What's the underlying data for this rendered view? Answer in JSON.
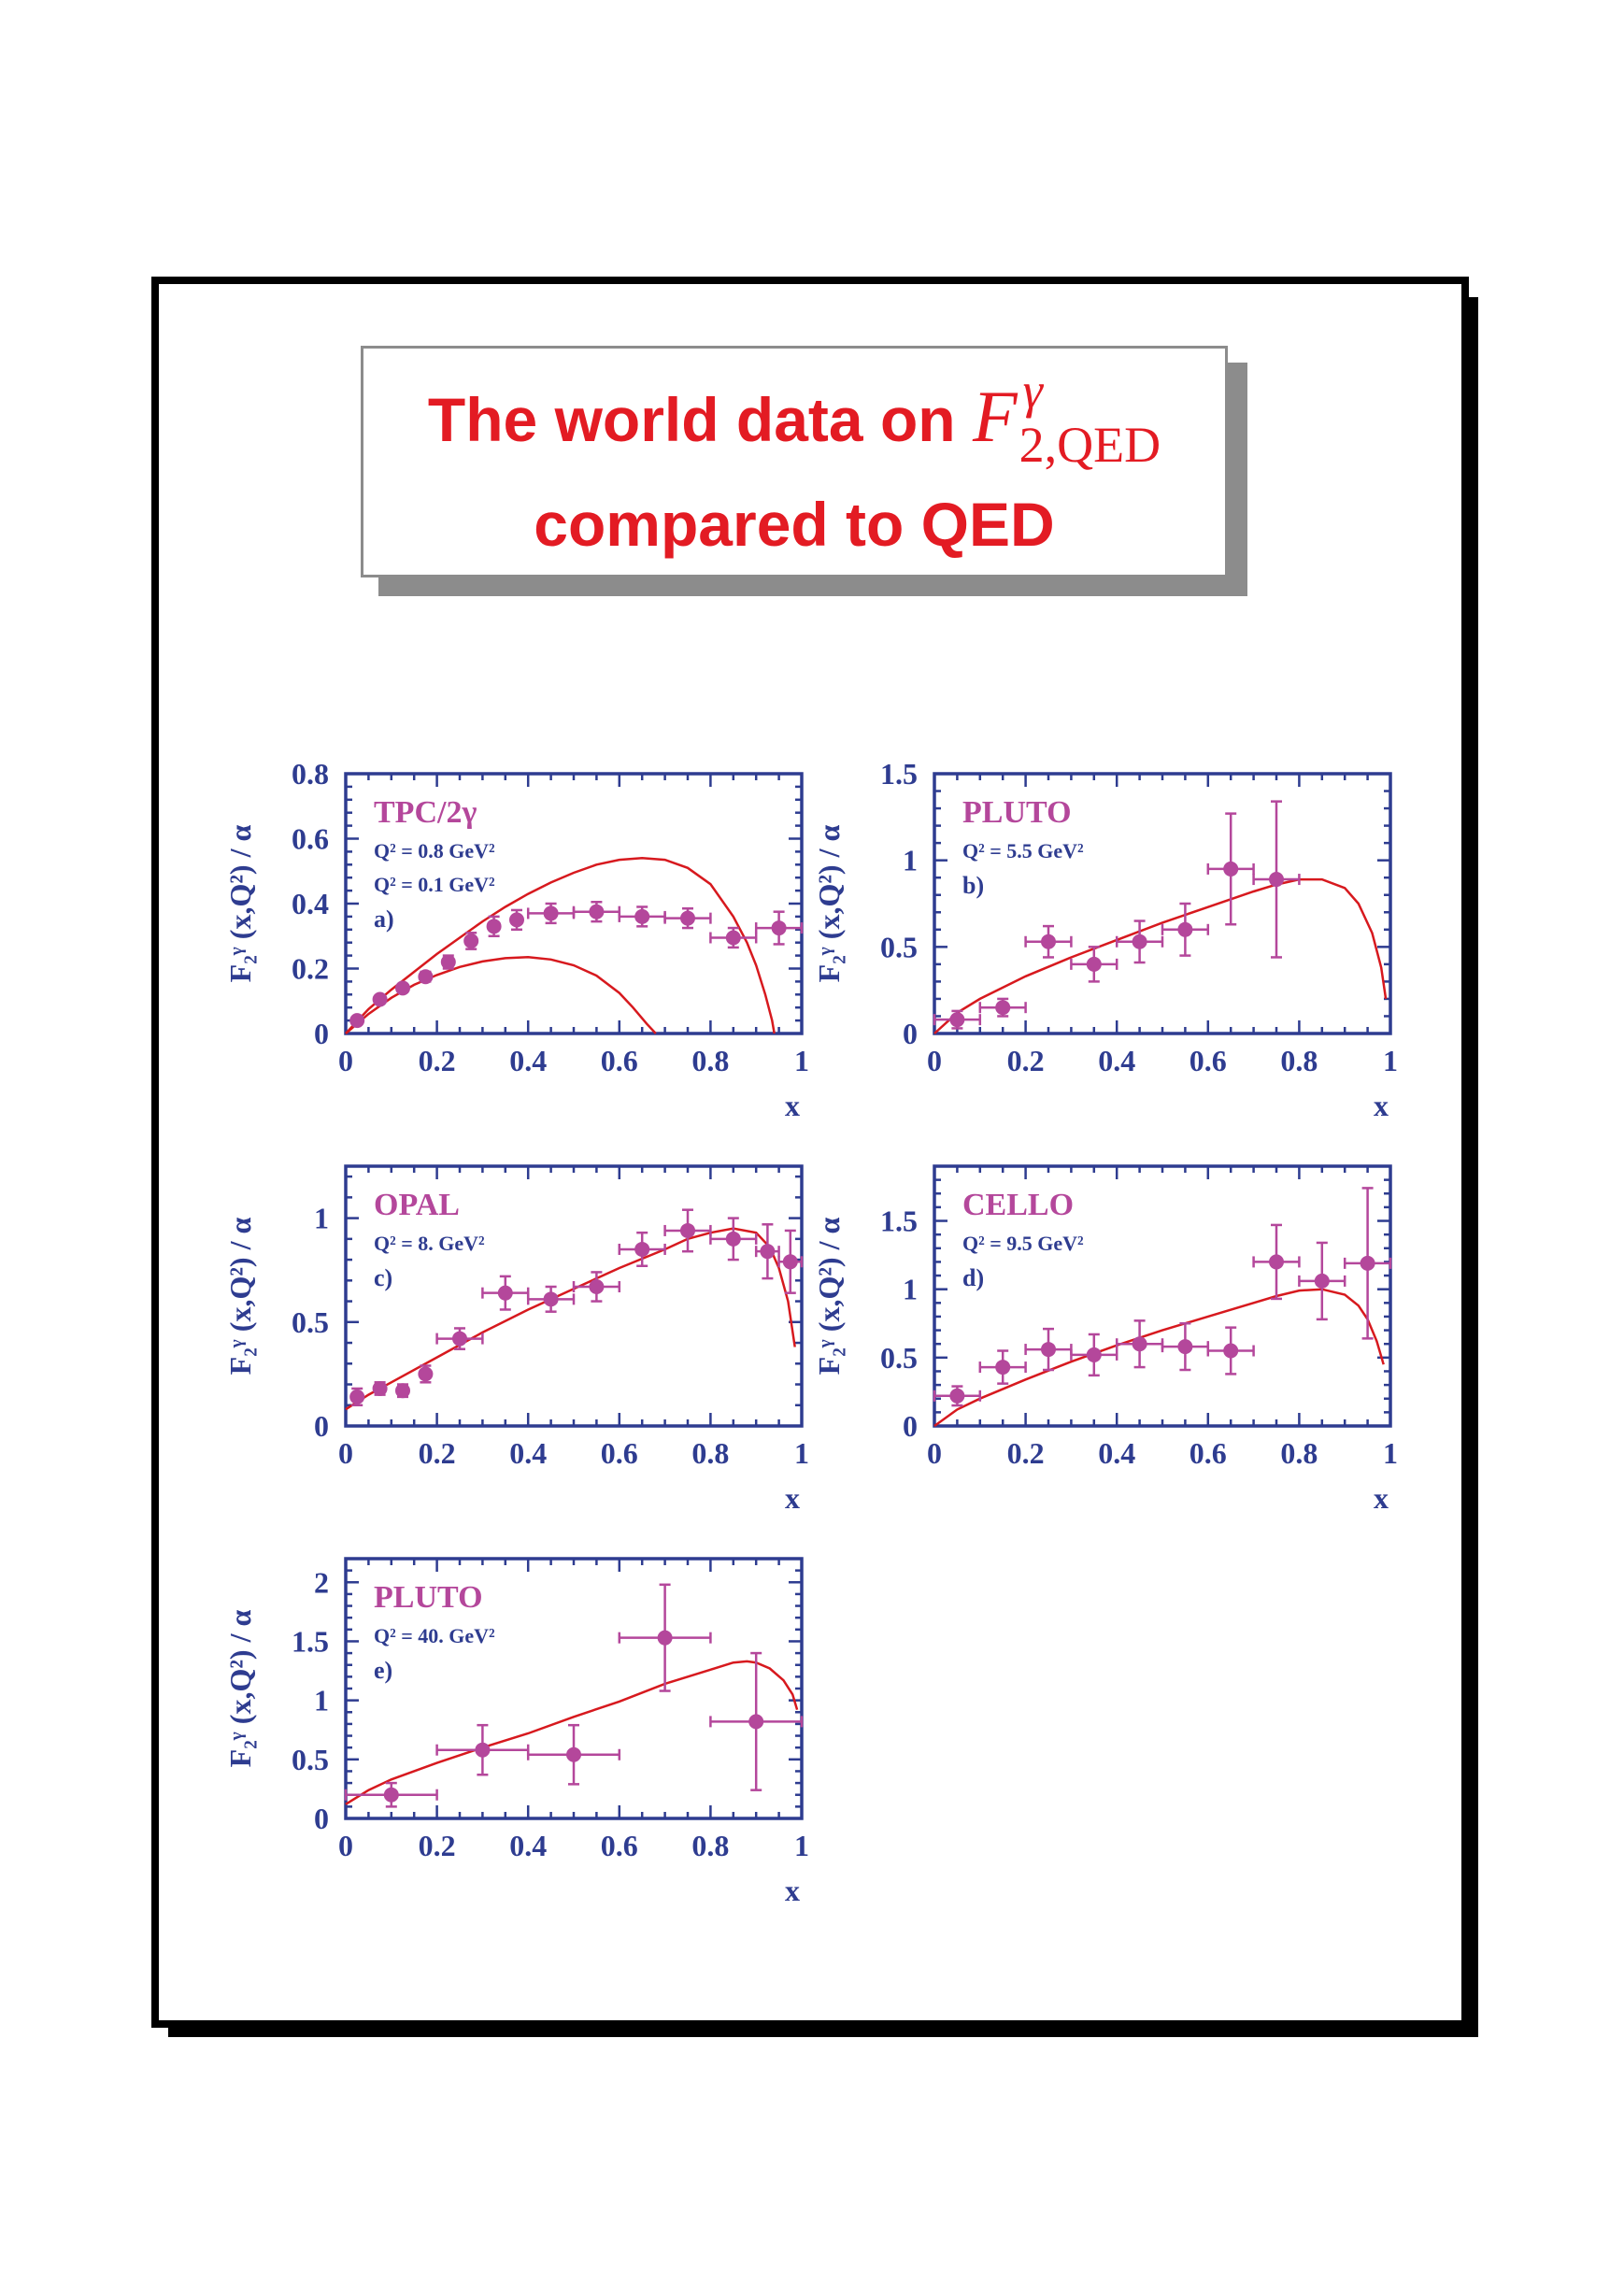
{
  "header": {
    "line1_text": "The world data on",
    "formula_base": "F",
    "formula_superscript": "γ",
    "formula_subscript": "2,QED",
    "line2": "compared to QED"
  },
  "colors": {
    "title": "#e31b23",
    "axes": "#2e3c90",
    "points": "#b4479b",
    "curve": "#d7191e",
    "frame": "#000000",
    "title_box_border": "#8c8c8c"
  },
  "chart_data": [
    {
      "id": "a",
      "type": "scatter",
      "experiment": "TPC/2γ",
      "q2_labels": [
        "Q² = 0.8 GeV²",
        "Q² = 0.1 GeV²"
      ],
      "tag": "a)",
      "xlabel": "x",
      "ylabel": "F₂ᵞ (x,Q²) / α",
      "xlim": [
        0,
        1
      ],
      "ylim": [
        0,
        0.8
      ],
      "xticks": [
        "0",
        "0.2",
        "0.4",
        "0.6",
        "0.8",
        "1"
      ],
      "yticks": [
        "0",
        "0.2",
        "0.4",
        "0.6",
        "0.8"
      ],
      "points": [
        {
          "x": 0.025,
          "y": 0.04,
          "xerr": 0.0,
          "yerr": 0.01
        },
        {
          "x": 0.075,
          "y": 0.105,
          "xerr": 0.0,
          "yerr": 0.01
        },
        {
          "x": 0.125,
          "y": 0.14,
          "xerr": 0.0,
          "yerr": 0.012
        },
        {
          "x": 0.175,
          "y": 0.175,
          "xerr": 0.0,
          "yerr": 0.015
        },
        {
          "x": 0.225,
          "y": 0.22,
          "xerr": 0.0,
          "yerr": 0.02
        },
        {
          "x": 0.275,
          "y": 0.285,
          "xerr": 0.0,
          "yerr": 0.025
        },
        {
          "x": 0.325,
          "y": 0.33,
          "xerr": 0.0,
          "yerr": 0.03
        },
        {
          "x": 0.375,
          "y": 0.35,
          "xerr": 0.0,
          "yerr": 0.03
        },
        {
          "x": 0.45,
          "y": 0.37,
          "xerr": 0.05,
          "yerr": 0.03
        },
        {
          "x": 0.55,
          "y": 0.375,
          "xerr": 0.05,
          "yerr": 0.03
        },
        {
          "x": 0.65,
          "y": 0.36,
          "xerr": 0.05,
          "yerr": 0.03
        },
        {
          "x": 0.75,
          "y": 0.355,
          "xerr": 0.05,
          "yerr": 0.03
        },
        {
          "x": 0.85,
          "y": 0.295,
          "xerr": 0.05,
          "yerr": 0.03
        },
        {
          "x": 0.95,
          "y": 0.325,
          "xerr": 0.05,
          "yerr": 0.05
        }
      ],
      "curves": [
        {
          "x": [
            0.0,
            0.05,
            0.1,
            0.15,
            0.2,
            0.25,
            0.3,
            0.35,
            0.4,
            0.45,
            0.5,
            0.55,
            0.6,
            0.65,
            0.7,
            0.75,
            0.8,
            0.85,
            0.88,
            0.9,
            0.92,
            0.935,
            0.94
          ],
          "y": [
            0.0,
            0.075,
            0.135,
            0.19,
            0.245,
            0.295,
            0.345,
            0.39,
            0.43,
            0.465,
            0.495,
            0.52,
            0.535,
            0.54,
            0.535,
            0.51,
            0.46,
            0.36,
            0.28,
            0.21,
            0.12,
            0.04,
            0.0
          ]
        },
        {
          "x": [
            0.0,
            0.05,
            0.1,
            0.15,
            0.2,
            0.25,
            0.3,
            0.35,
            0.4,
            0.45,
            0.5,
            0.55,
            0.6,
            0.63,
            0.66,
            0.68
          ],
          "y": [
            0.0,
            0.06,
            0.11,
            0.15,
            0.18,
            0.205,
            0.222,
            0.232,
            0.235,
            0.228,
            0.21,
            0.178,
            0.125,
            0.08,
            0.03,
            0.0
          ]
        }
      ]
    },
    {
      "id": "b",
      "type": "scatter",
      "experiment": "PLUTO",
      "q2_labels": [
        "Q² = 5.5 GeV²"
      ],
      "tag": "b)",
      "xlabel": "x",
      "ylabel": "F₂ᵞ (x,Q²) / α",
      "xlim": [
        0,
        1
      ],
      "ylim": [
        0,
        1.5
      ],
      "xticks": [
        "0",
        "0.2",
        "0.4",
        "0.6",
        "0.8",
        "1"
      ],
      "yticks": [
        "0",
        "0.5",
        "1",
        "1.5"
      ],
      "points": [
        {
          "x": 0.05,
          "y": 0.08,
          "xerr": 0.05,
          "yerr": 0.05
        },
        {
          "x": 0.15,
          "y": 0.15,
          "xerr": 0.05,
          "yerr": 0.05
        },
        {
          "x": 0.25,
          "y": 0.53,
          "xerr": 0.05,
          "yerr": 0.09
        },
        {
          "x": 0.35,
          "y": 0.4,
          "xerr": 0.05,
          "yerr": 0.1
        },
        {
          "x": 0.45,
          "y": 0.53,
          "xerr": 0.05,
          "yerr": 0.12
        },
        {
          "x": 0.55,
          "y": 0.6,
          "xerr": 0.05,
          "yerr": 0.15
        },
        {
          "x": 0.65,
          "y": 0.95,
          "xerr": 0.05,
          "yerr": 0.32
        },
        {
          "x": 0.75,
          "y": 0.89,
          "xerr": 0.05,
          "yerr": 0.45
        }
      ],
      "curves": [
        {
          "x": [
            0.0,
            0.05,
            0.1,
            0.2,
            0.3,
            0.4,
            0.5,
            0.6,
            0.7,
            0.75,
            0.8,
            0.85,
            0.9,
            0.93,
            0.96,
            0.98,
            0.99
          ],
          "y": [
            0.0,
            0.12,
            0.2,
            0.33,
            0.44,
            0.54,
            0.64,
            0.73,
            0.82,
            0.86,
            0.89,
            0.89,
            0.84,
            0.75,
            0.58,
            0.38,
            0.2
          ]
        }
      ]
    },
    {
      "id": "c",
      "type": "scatter",
      "experiment": "OPAL",
      "q2_labels": [
        "Q² = 8. GeV²"
      ],
      "tag": "c)",
      "xlabel": "x",
      "ylabel": "F₂ᵞ (x,Q²) / α",
      "xlim": [
        0,
        1
      ],
      "ylim": [
        0,
        1.25
      ],
      "xticks": [
        "0",
        "0.2",
        "0.4",
        "0.6",
        "0.8",
        "1"
      ],
      "yticks": [
        "0",
        "0.5",
        "1"
      ],
      "points": [
        {
          "x": 0.025,
          "y": 0.14,
          "xerr": 0.0,
          "yerr": 0.04
        },
        {
          "x": 0.075,
          "y": 0.18,
          "xerr": 0.0,
          "yerr": 0.03
        },
        {
          "x": 0.125,
          "y": 0.17,
          "xerr": 0.0,
          "yerr": 0.03
        },
        {
          "x": 0.175,
          "y": 0.25,
          "xerr": 0.0,
          "yerr": 0.04
        },
        {
          "x": 0.25,
          "y": 0.42,
          "xerr": 0.05,
          "yerr": 0.05
        },
        {
          "x": 0.35,
          "y": 0.64,
          "xerr": 0.05,
          "yerr": 0.08
        },
        {
          "x": 0.45,
          "y": 0.61,
          "xerr": 0.05,
          "yerr": 0.06
        },
        {
          "x": 0.55,
          "y": 0.67,
          "xerr": 0.05,
          "yerr": 0.07
        },
        {
          "x": 0.65,
          "y": 0.85,
          "xerr": 0.05,
          "yerr": 0.08
        },
        {
          "x": 0.75,
          "y": 0.94,
          "xerr": 0.05,
          "yerr": 0.1
        },
        {
          "x": 0.85,
          "y": 0.9,
          "xerr": 0.05,
          "yerr": 0.1
        },
        {
          "x": 0.925,
          "y": 0.84,
          "xerr": 0.025,
          "yerr": 0.13
        },
        {
          "x": 0.975,
          "y": 0.79,
          "xerr": 0.025,
          "yerr": 0.15
        }
      ],
      "curves": [
        {
          "x": [
            0.0,
            0.05,
            0.1,
            0.2,
            0.3,
            0.4,
            0.5,
            0.6,
            0.7,
            0.75,
            0.8,
            0.85,
            0.9,
            0.93,
            0.95,
            0.97,
            0.985
          ],
          "y": [
            0.08,
            0.15,
            0.21,
            0.33,
            0.45,
            0.56,
            0.66,
            0.76,
            0.85,
            0.9,
            0.93,
            0.95,
            0.93,
            0.86,
            0.76,
            0.6,
            0.38
          ]
        }
      ]
    },
    {
      "id": "d",
      "type": "scatter",
      "experiment": "CELLO",
      "q2_labels": [
        "Q² = 9.5 GeV²"
      ],
      "tag": "d)",
      "xlabel": "x",
      "ylabel": "F₂ᵞ (x,Q²) / α",
      "xlim": [
        0,
        1
      ],
      "ylim": [
        0,
        1.9
      ],
      "xticks": [
        "0",
        "0.2",
        "0.4",
        "0.6",
        "0.8",
        "1"
      ],
      "yticks": [
        "0",
        "0.5",
        "1",
        "1.5"
      ],
      "points": [
        {
          "x": 0.05,
          "y": 0.22,
          "xerr": 0.05,
          "yerr": 0.07
        },
        {
          "x": 0.15,
          "y": 0.43,
          "xerr": 0.05,
          "yerr": 0.12
        },
        {
          "x": 0.25,
          "y": 0.56,
          "xerr": 0.05,
          "yerr": 0.15
        },
        {
          "x": 0.35,
          "y": 0.52,
          "xerr": 0.05,
          "yerr": 0.15
        },
        {
          "x": 0.45,
          "y": 0.6,
          "xerr": 0.05,
          "yerr": 0.17
        },
        {
          "x": 0.55,
          "y": 0.58,
          "xerr": 0.05,
          "yerr": 0.17
        },
        {
          "x": 0.65,
          "y": 0.55,
          "xerr": 0.05,
          "yerr": 0.17
        },
        {
          "x": 0.75,
          "y": 1.2,
          "xerr": 0.05,
          "yerr": 0.27
        },
        {
          "x": 0.85,
          "y": 1.06,
          "xerr": 0.05,
          "yerr": 0.28
        },
        {
          "x": 0.95,
          "y": 1.19,
          "xerr": 0.05,
          "yerr": 0.55
        }
      ],
      "curves": [
        {
          "x": [
            0.0,
            0.05,
            0.1,
            0.2,
            0.3,
            0.4,
            0.5,
            0.6,
            0.7,
            0.75,
            0.8,
            0.85,
            0.9,
            0.93,
            0.95,
            0.97,
            0.985
          ],
          "y": [
            0.0,
            0.12,
            0.2,
            0.34,
            0.47,
            0.59,
            0.7,
            0.8,
            0.9,
            0.95,
            0.99,
            1.0,
            0.96,
            0.88,
            0.78,
            0.62,
            0.45
          ]
        }
      ]
    },
    {
      "id": "e",
      "type": "scatter",
      "experiment": "PLUTO",
      "q2_labels": [
        "Q² = 40. GeV²"
      ],
      "tag": "e)",
      "xlabel": "x",
      "ylabel": "F₂ᵞ (x,Q²) / α",
      "xlim": [
        0,
        1
      ],
      "ylim": [
        0,
        2.2
      ],
      "xticks": [
        "0",
        "0.2",
        "0.4",
        "0.6",
        "0.8",
        "1"
      ],
      "yticks": [
        "0",
        "0.5",
        "1",
        "1.5",
        "2"
      ],
      "points": [
        {
          "x": 0.1,
          "y": 0.2,
          "xerr": 0.1,
          "yerr": 0.1
        },
        {
          "x": 0.3,
          "y": 0.58,
          "xerr": 0.1,
          "yerr": 0.21
        },
        {
          "x": 0.5,
          "y": 0.54,
          "xerr": 0.1,
          "yerr": 0.25
        },
        {
          "x": 0.7,
          "y": 1.53,
          "xerr": 0.1,
          "yerr": 0.45
        },
        {
          "x": 0.9,
          "y": 0.82,
          "xerr": 0.1,
          "yerr": 0.58
        }
      ],
      "curves": [
        {
          "x": [
            0.0,
            0.05,
            0.1,
            0.2,
            0.3,
            0.4,
            0.5,
            0.6,
            0.7,
            0.8,
            0.85,
            0.88,
            0.9,
            0.93,
            0.96,
            0.98,
            0.99
          ],
          "y": [
            0.12,
            0.24,
            0.33,
            0.47,
            0.6,
            0.72,
            0.86,
            0.99,
            1.14,
            1.26,
            1.32,
            1.33,
            1.32,
            1.27,
            1.17,
            1.05,
            0.92
          ]
        }
      ]
    }
  ]
}
